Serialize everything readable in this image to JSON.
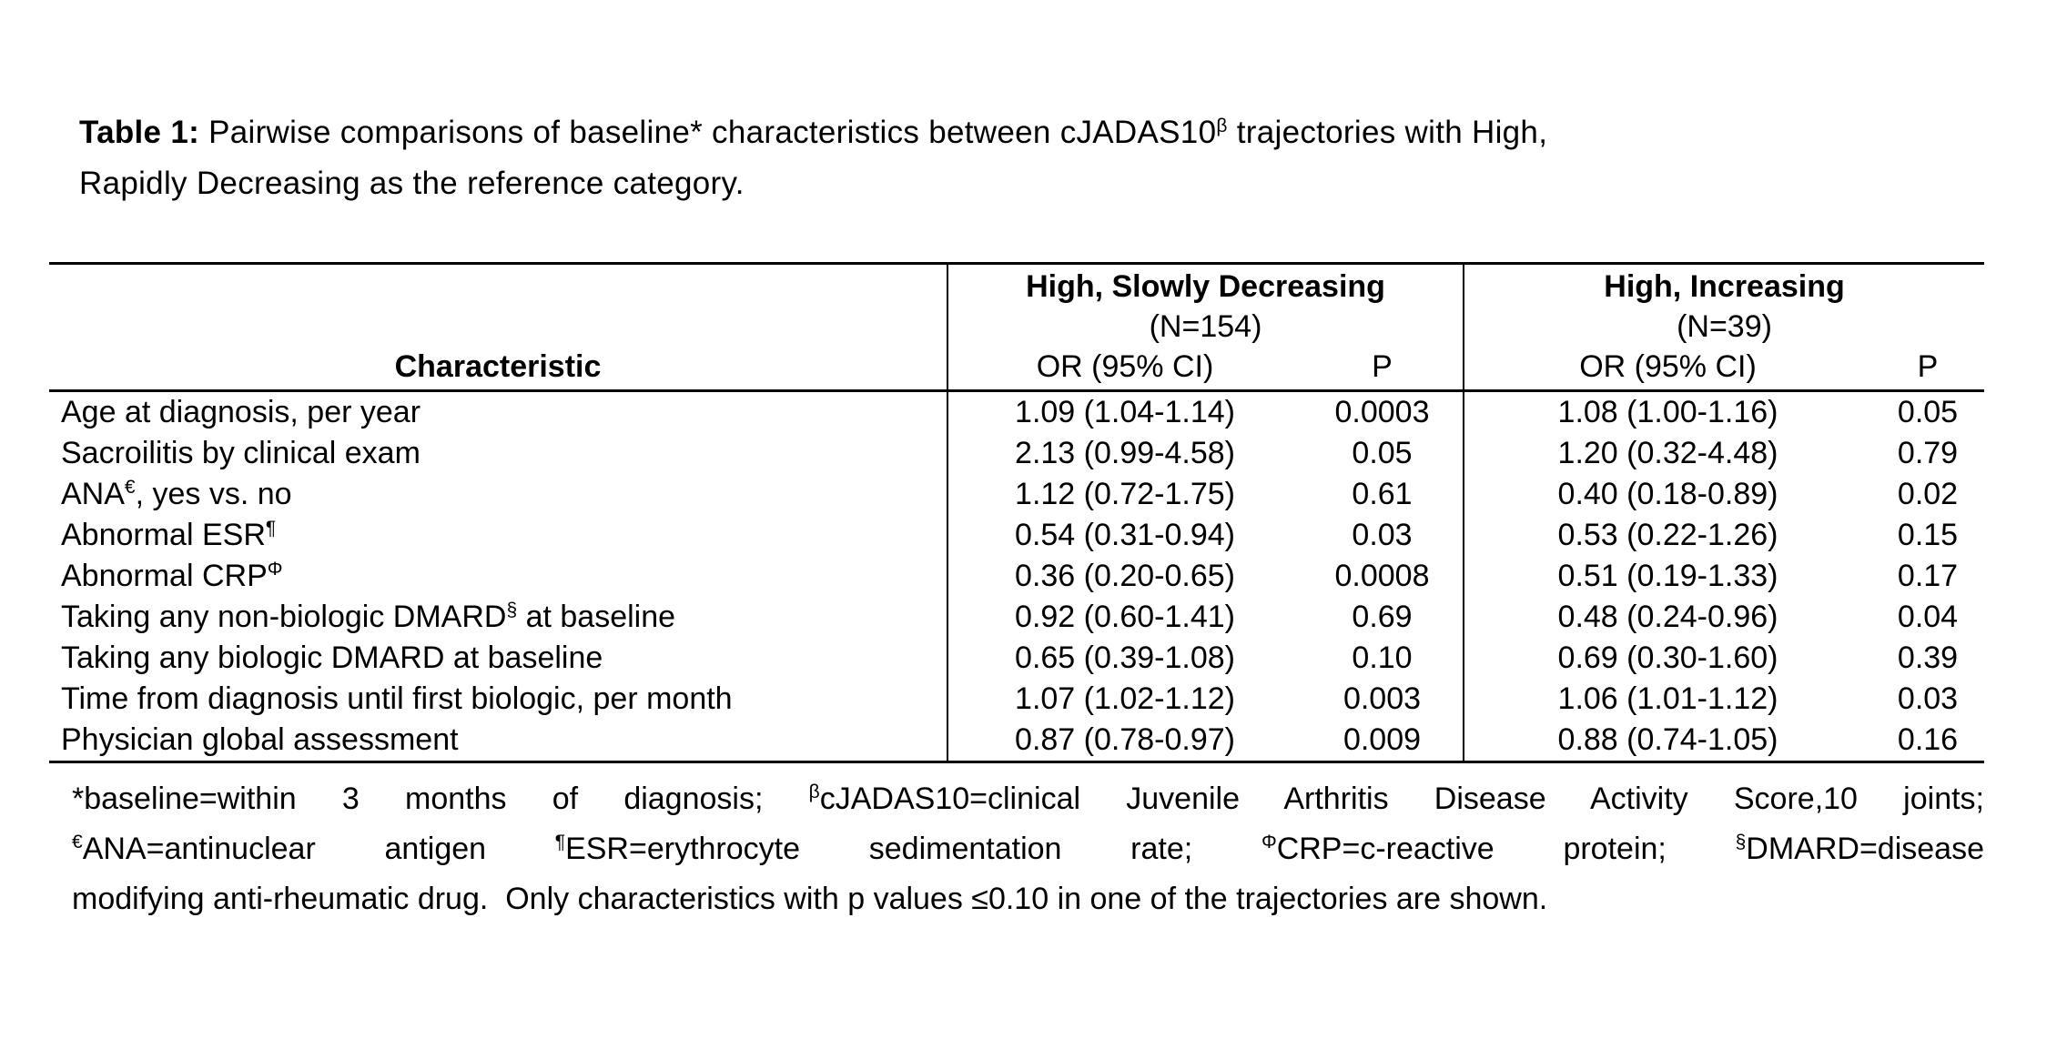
{
  "colors": {
    "background": "#ffffff",
    "text": "#000000",
    "rule": "#000000"
  },
  "title": {
    "line1": [
      {
        "t": "Table 1:",
        "b": true
      },
      {
        "t": " Pairwise comparisons of baseline* characteristics between cJADAS10"
      },
      {
        "s": "β"
      },
      {
        "t": " trajectories with High,"
      }
    ],
    "line2": [
      {
        "t": "Rapidly Decreasing as the reference category."
      }
    ]
  },
  "table": {
    "char_header": "Characteristic",
    "groups": [
      {
        "title": "High, Slowly Decreasing",
        "n": "(N=154)",
        "or_header": "OR (95% CI)",
        "p_header": "P"
      },
      {
        "title": "High, Increasing",
        "n": "(N=39)",
        "or_header": "OR (95% CI)",
        "p_header": "P"
      }
    ],
    "rows": [
      {
        "label": [
          {
            "t": "Age at diagnosis, per year"
          }
        ],
        "or1": "1.09 (1.04-1.14)",
        "p1": "0.0003",
        "or2": "1.08 (1.00-1.16)",
        "p2": "0.05"
      },
      {
        "label": [
          {
            "t": "Sacroilitis by clinical exam"
          }
        ],
        "or1": "2.13 (0.99-4.58)",
        "p1": "0.05",
        "or2": "1.20 (0.32-4.48)",
        "p2": "0.79"
      },
      {
        "label": [
          {
            "t": "ANA"
          },
          {
            "s": "€"
          },
          {
            "t": ", yes vs. no"
          }
        ],
        "or1": "1.12 (0.72-1.75)",
        "p1": "0.61",
        "or2": "0.40 (0.18-0.89)",
        "p2": "0.02"
      },
      {
        "label": [
          {
            "t": "Abnormal ESR"
          },
          {
            "s": "¶"
          }
        ],
        "or1": "0.54 (0.31-0.94)",
        "p1": "0.03",
        "or2": "0.53 (0.22-1.26)",
        "p2": "0.15"
      },
      {
        "label": [
          {
            "t": "Abnormal CRP"
          },
          {
            "s": "Φ"
          }
        ],
        "or1": "0.36 (0.20-0.65)",
        "p1": "0.0008",
        "or2": "0.51 (0.19-1.33)",
        "p2": "0.17"
      },
      {
        "label": [
          {
            "t": "Taking any non-biologic DMARD"
          },
          {
            "s": "§"
          },
          {
            "t": " at baseline"
          }
        ],
        "or1": "0.92 (0.60-1.41)",
        "p1": "0.69",
        "or2": "0.48 (0.24-0.96)",
        "p2": "0.04"
      },
      {
        "label": [
          {
            "t": "Taking any biologic DMARD at baseline"
          }
        ],
        "or1": "0.65 (0.39-1.08)",
        "p1": "0.10",
        "or2": "0.69 (0.30-1.60)",
        "p2": "0.39"
      },
      {
        "label": [
          {
            "t": "Time from diagnosis until first biologic, per month"
          }
        ],
        "or1": "1.07 (1.02-1.12)",
        "p1": "0.003",
        "or2": "1.06 (1.01-1.12)",
        "p2": "0.03"
      },
      {
        "label": [
          {
            "t": "Physician global assessment"
          }
        ],
        "or1": "0.87 (0.78-0.97)",
        "p1": "0.009",
        "or2": "0.88 (0.74-1.05)",
        "p2": "0.16"
      }
    ]
  },
  "footnote": {
    "line1": [
      {
        "t": "*baseline=within 3 months of diagnosis; "
      },
      {
        "s": "β"
      },
      {
        "t": "cJADAS10=clinical Juvenile Arthritis Disease Activity Score,10 joints;"
      }
    ],
    "line2": [
      {
        "s": "€"
      },
      {
        "t": "ANA=antinuclear antigen "
      },
      {
        "s": "¶"
      },
      {
        "t": "ESR=erythrocyte sedimentation rate; "
      },
      {
        "s": "Φ"
      },
      {
        "t": "CRP=c-reactive protein; "
      },
      {
        "s": "§"
      },
      {
        "t": "DMARD=disease"
      }
    ],
    "line3": [
      {
        "t": "modifying anti-rheumatic drug.  Only characteristics with p values ≤0.10 in one of the trajectories are shown."
      }
    ]
  }
}
